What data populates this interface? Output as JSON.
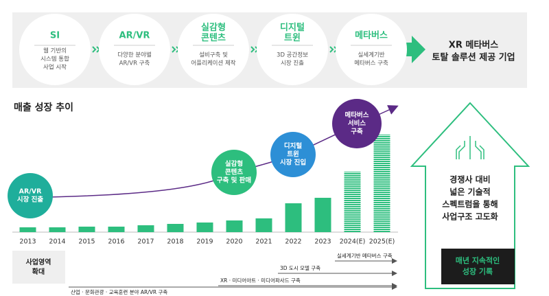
{
  "steps": [
    {
      "title": [
        "SI"
      ],
      "desc": [
        "웹 기반의",
        "시스템 통합",
        "사업 시작"
      ]
    },
    {
      "title": [
        "AR/VR"
      ],
      "desc": [
        "다양한 분야별",
        "AR/VR 구축"
      ]
    },
    {
      "title": [
        "실감형",
        "콘텐츠"
      ],
      "desc": [
        "설비구축 및",
        "어플리케이션 제작"
      ]
    },
    {
      "title": [
        "디지털",
        "트윈"
      ],
      "desc": [
        "3D 공간정보",
        "시장 진출"
      ]
    },
    {
      "title": [
        "메타버스"
      ],
      "desc": [
        "실세계기반",
        "메타버스 구축"
      ]
    }
  ],
  "tagline": [
    "XR 메타버스",
    "토탈 솔루션 제공 기업"
  ],
  "chart_data": {
    "type": "bar",
    "title": "매출 성장 추이",
    "categories": [
      "2013",
      "2014",
      "2015",
      "2016",
      "2017",
      "2018",
      "2019",
      "2020",
      "2021",
      "2022",
      "2023",
      "2024(E)",
      "2025(E)"
    ],
    "values": [
      7,
      7,
      8,
      8,
      10,
      12,
      14,
      17,
      20,
      42,
      50,
      88,
      142
    ],
    "ylim": [
      0,
      150
    ],
    "color": "#2dbe7e",
    "milestones": [
      {
        "label": [
          "AR/VR",
          "시장 진출"
        ],
        "color": "#1fae9b"
      },
      {
        "label": [
          "실감형",
          "콘텐츠",
          "구축 및 판매"
        ],
        "color": "#2dbe7e"
      },
      {
        "label": [
          "디지털",
          "트윈",
          "시장 진입"
        ],
        "color": "#2d8fd6"
      },
      {
        "label": [
          "메타버스",
          "서비스",
          "구축"
        ],
        "color": "#5b2a86"
      }
    ]
  },
  "expansion": {
    "title": [
      "사업영역",
      "확대"
    ],
    "items": [
      "실세계기반 메타버스 구축",
      "3D 도시 모델 구축",
      "XR · 미디어아트 · 미디어파사드 구축",
      "산업 · 문화관광 · 교육훈련 분야 AR/VR 구축"
    ]
  },
  "highlight": {
    "text": [
      "경쟁사 대비",
      "넓은 기술적",
      "스펙트럼을 통해",
      "사업구조 고도화"
    ],
    "badge": [
      "매년 지속적인",
      "성장 기록"
    ]
  }
}
